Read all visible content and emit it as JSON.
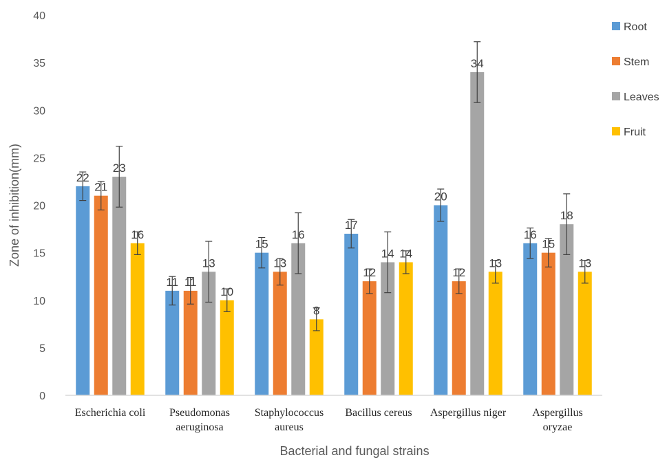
{
  "chart_data": {
    "type": "bar",
    "title": "",
    "xlabel": "Bacterial and fungal strains",
    "ylabel": "Zone of inhibition(mm)",
    "ylim": [
      0,
      40
    ],
    "yticks": [
      0,
      5,
      10,
      15,
      20,
      25,
      30,
      35,
      40
    ],
    "grid": false,
    "legend_position": "right",
    "categories": [
      [
        "Escherichia coli"
      ],
      [
        "Pseudomonas",
        "aeruginosa"
      ],
      [
        "Staphylococcus",
        "aureus"
      ],
      [
        "Bacillus cereus"
      ],
      [
        "Aspergillus niger"
      ],
      [
        "Aspergillus",
        "oryzae"
      ]
    ],
    "series": [
      {
        "name": "Root",
        "color": "#5B9BD5",
        "values": [
          22,
          11,
          15,
          17,
          20,
          16
        ],
        "errors": [
          1.5,
          1.5,
          1.6,
          1.5,
          1.7,
          1.6
        ]
      },
      {
        "name": "Stem",
        "color": "#ED7D31",
        "values": [
          21,
          11,
          13,
          12,
          12,
          15
        ],
        "errors": [
          1.5,
          1.4,
          1.4,
          1.3,
          1.3,
          1.5
        ]
      },
      {
        "name": "Leaves",
        "color": "#A5A5A5",
        "values": [
          23,
          13,
          16,
          14,
          34,
          18
        ],
        "errors": [
          3.2,
          3.2,
          3.2,
          3.2,
          3.2,
          3.2
        ]
      },
      {
        "name": "Fruit",
        "color": "#FFC000",
        "values": [
          16,
          10,
          8,
          14,
          13,
          13
        ],
        "errors": [
          1.2,
          1.2,
          1.2,
          1.2,
          1.2,
          1.2
        ]
      }
    ]
  }
}
